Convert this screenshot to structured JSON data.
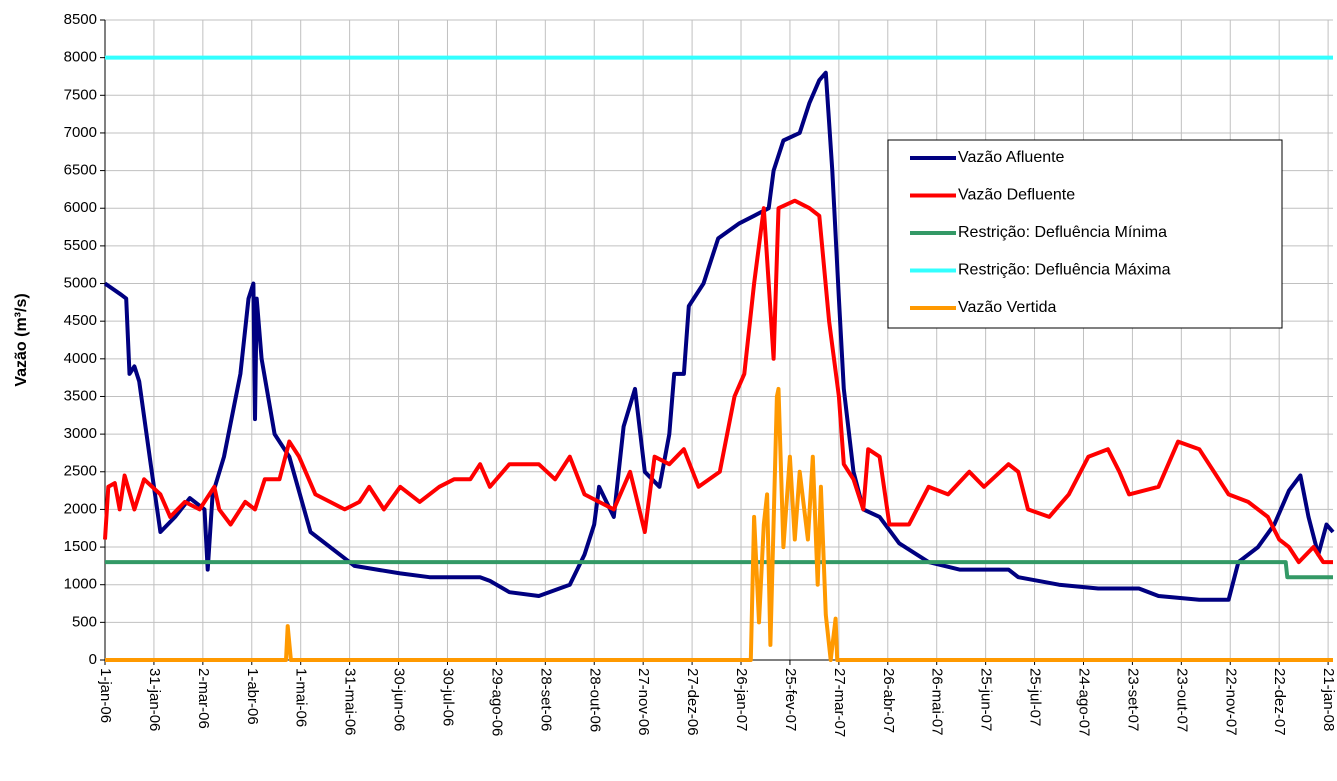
{
  "chart_data": {
    "type": "line",
    "y_label": "Vazão (m³/s)",
    "ylim": [
      0,
      8500
    ],
    "yticks": [
      0,
      500,
      1000,
      1500,
      2000,
      2500,
      3000,
      3500,
      4000,
      4500,
      5000,
      5500,
      6000,
      6500,
      7000,
      7500,
      8000,
      8500
    ],
    "xlim": [
      "2006-01-01",
      "2008-01-24"
    ],
    "xticks": [
      {
        "value": "2006-01-01",
        "label": "1-jan-06"
      },
      {
        "value": "2006-01-31",
        "label": "31-jan-06"
      },
      {
        "value": "2006-03-02",
        "label": "2-mar-06"
      },
      {
        "value": "2006-04-01",
        "label": "1-abr-06"
      },
      {
        "value": "2006-05-01",
        "label": "1-mai-06"
      },
      {
        "value": "2006-05-31",
        "label": "31-mai-06"
      },
      {
        "value": "2006-06-30",
        "label": "30-jun-06"
      },
      {
        "value": "2006-07-30",
        "label": "30-jul-06"
      },
      {
        "value": "2006-08-29",
        "label": "29-ago-06"
      },
      {
        "value": "2006-09-28",
        "label": "28-set-06"
      },
      {
        "value": "2006-10-28",
        "label": "28-out-06"
      },
      {
        "value": "2006-11-27",
        "label": "27-nov-06"
      },
      {
        "value": "2006-12-27",
        "label": "27-dez-06"
      },
      {
        "value": "2007-01-26",
        "label": "26-jan-07"
      },
      {
        "value": "2007-02-25",
        "label": "25-fev-07"
      },
      {
        "value": "2007-03-27",
        "label": "27-mar-07"
      },
      {
        "value": "2007-04-26",
        "label": "26-abr-07"
      },
      {
        "value": "2007-05-26",
        "label": "26-mai-07"
      },
      {
        "value": "2007-06-25",
        "label": "25-jun-07"
      },
      {
        "value": "2007-07-25",
        "label": "25-jul-07"
      },
      {
        "value": "2007-08-24",
        "label": "24-ago-07"
      },
      {
        "value": "2007-09-23",
        "label": "23-set-07"
      },
      {
        "value": "2007-10-23",
        "label": "23-out-07"
      },
      {
        "value": "2007-11-22",
        "label": "22-nov-07"
      },
      {
        "value": "2007-12-22",
        "label": "22-dez-07"
      },
      {
        "value": "2008-01-21",
        "label": "21-jan-08"
      }
    ],
    "grid": true,
    "legend": "upper right",
    "series": [
      {
        "name": "Vazão Afluente",
        "color": "#000080",
        "x": [
          "2006-01-01",
          "2006-01-11",
          "2006-01-14",
          "2006-01-16",
          "2006-01-19",
          "2006-01-22",
          "2006-01-29",
          "2006-02-04",
          "2006-02-13",
          "2006-02-22",
          "2006-03-03",
          "2006-03-05",
          "2006-03-08",
          "2006-03-15",
          "2006-03-25",
          "2006-03-30",
          "2006-04-02",
          "2006-04-03",
          "2006-04-04",
          "2006-04-07",
          "2006-04-15",
          "2006-04-24",
          "2006-05-07",
          "2006-05-25",
          "2006-06-03",
          "2006-07-01",
          "2006-07-19",
          "2006-08-19",
          "2006-08-25",
          "2006-09-06",
          "2006-09-24",
          "2006-10-13",
          "2006-10-22",
          "2006-10-28",
          "2006-10-31",
          "2006-11-09",
          "2006-11-15",
          "2006-11-22",
          "2006-11-28",
          "2006-12-07",
          "2006-12-13",
          "2006-12-16",
          "2006-12-22",
          "2006-12-25",
          "2007-01-03",
          "2007-01-12",
          "2007-01-25",
          "2007-02-03",
          "2007-02-12",
          "2007-02-15",
          "2007-02-21",
          "2007-03-03",
          "2007-03-09",
          "2007-03-15",
          "2007-03-19",
          "2007-03-23",
          "2007-03-27",
          "2007-03-30",
          "2007-04-05",
          "2007-04-11",
          "2007-04-21",
          "2007-05-03",
          "2007-05-21",
          "2007-06-09",
          "2007-07-09",
          "2007-07-15",
          "2007-08-09",
          "2007-09-02",
          "2007-09-27",
          "2007-10-09",
          "2007-11-03",
          "2007-11-21",
          "2007-11-27",
          "2007-12-09",
          "2007-12-19",
          "2007-12-28",
          "2008-01-04",
          "2008-01-09",
          "2008-01-15",
          "2008-01-20",
          "2008-01-24"
        ],
        "values": [
          5000,
          4850,
          4800,
          3800,
          3900,
          3700,
          2600,
          1700,
          1900,
          2150,
          2000,
          1200,
          2200,
          2700,
          3800,
          4800,
          5000,
          3200,
          4800,
          4000,
          3000,
          2700,
          1700,
          1400,
          1250,
          1150,
          1100,
          1100,
          1050,
          900,
          850,
          1000,
          1400,
          1800,
          2300,
          1900,
          3100,
          3600,
          2500,
          2300,
          3000,
          3800,
          3800,
          4700,
          5000,
          5600,
          5800,
          5900,
          6000,
          6500,
          6900,
          7000,
          7400,
          7700,
          7800,
          6500,
          4800,
          3600,
          2500,
          2000,
          1900,
          1550,
          1300,
          1200,
          1200,
          1100,
          1000,
          950,
          950,
          850,
          800,
          800,
          1300,
          1500,
          1800,
          2250,
          2450,
          1900,
          1400,
          1800,
          1700
        ]
      },
      {
        "name": "Vazão Defluente",
        "color": "#ff0000",
        "x": [
          "2006-01-01",
          "2006-01-03",
          "2006-01-07",
          "2006-01-10",
          "2006-01-13",
          "2006-01-19",
          "2006-01-25",
          "2006-02-04",
          "2006-02-10",
          "2006-02-19",
          "2006-02-28",
          "2006-03-09",
          "2006-03-12",
          "2006-03-19",
          "2006-03-28",
          "2006-04-03",
          "2006-04-09",
          "2006-04-18",
          "2006-04-24",
          "2006-04-30",
          "2006-05-10",
          "2006-05-19",
          "2006-05-28",
          "2006-06-06",
          "2006-06-12",
          "2006-06-21",
          "2006-07-01",
          "2006-07-13",
          "2006-07-25",
          "2006-08-03",
          "2006-08-13",
          "2006-08-19",
          "2006-08-25",
          "2006-09-06",
          "2006-09-24",
          "2006-10-04",
          "2006-10-13",
          "2006-10-22",
          "2006-10-31",
          "2006-11-09",
          "2006-11-19",
          "2006-11-28",
          "2006-12-04",
          "2006-12-13",
          "2006-12-22",
          "2006-12-31",
          "2007-01-13",
          "2007-01-22",
          "2007-01-28",
          "2007-02-03",
          "2007-02-09",
          "2007-02-12",
          "2007-02-15",
          "2007-02-18",
          "2007-02-28",
          "2007-03-09",
          "2007-03-15",
          "2007-03-21",
          "2007-03-27",
          "2007-03-30",
          "2007-04-05",
          "2007-04-11",
          "2007-04-14",
          "2007-04-21",
          "2007-04-27",
          "2007-05-09",
          "2007-05-21",
          "2007-06-02",
          "2007-06-15",
          "2007-06-24",
          "2007-07-09",
          "2007-07-15",
          "2007-07-21",
          "2007-08-03",
          "2007-08-15",
          "2007-08-27",
          "2007-09-08",
          "2007-09-15",
          "2007-09-21",
          "2007-10-09",
          "2007-10-21",
          "2007-11-03",
          "2007-11-12",
          "2007-11-21",
          "2007-12-03",
          "2007-12-15",
          "2007-12-22",
          "2007-12-28",
          "2008-01-03",
          "2008-01-12",
          "2008-01-18",
          "2008-01-24"
        ],
        "values": [
          1600,
          2300,
          2350,
          2000,
          2450,
          2000,
          2400,
          2200,
          1900,
          2100,
          2000,
          2300,
          2000,
          1800,
          2100,
          2000,
          2400,
          2400,
          2900,
          2700,
          2200,
          2100,
          2000,
          2100,
          2300,
          2000,
          2300,
          2100,
          2300,
          2400,
          2400,
          2600,
          2300,
          2600,
          2600,
          2400,
          2700,
          2200,
          2100,
          2000,
          2500,
          1700,
          2700,
          2600,
          2800,
          2300,
          2500,
          3500,
          3800,
          5000,
          6000,
          5000,
          4000,
          6000,
          6100,
          6000,
          5900,
          4500,
          3500,
          2600,
          2400,
          2000,
          2800,
          2700,
          1800,
          1800,
          2300,
          2200,
          2500,
          2300,
          2600,
          2500,
          2000,
          1900,
          2200,
          2700,
          2800,
          2500,
          2200,
          2300,
          2900,
          2800,
          2500,
          2200,
          2100,
          1900,
          1600,
          1500,
          1300,
          1500,
          1300,
          1300
        ]
      },
      {
        "name": "Restrição: Defluência Mínima",
        "color": "#339966",
        "x": [
          "2006-01-01",
          "2007-12-26",
          "2007-12-27",
          "2008-01-24"
        ],
        "values": [
          1300,
          1300,
          1100,
          1100
        ]
      },
      {
        "name": "Restrição: Defluência Máxima",
        "color": "#33ffff",
        "x": [
          "2006-01-01",
          "2008-01-24"
        ],
        "values": [
          8000,
          8000
        ]
      },
      {
        "name": "Vazão Vertida",
        "color": "#ff9900",
        "x": [
          "2006-01-01",
          "2006-04-22",
          "2006-04-23",
          "2006-04-25",
          "2007-02-01",
          "2007-02-03",
          "2007-02-06",
          "2007-02-09",
          "2007-02-11",
          "2007-02-13",
          "2007-02-17",
          "2007-02-18",
          "2007-02-21",
          "2007-02-25",
          "2007-02-28",
          "2007-03-03",
          "2007-03-08",
          "2007-03-11",
          "2007-03-14",
          "2007-03-16",
          "2007-03-19",
          "2007-03-22",
          "2007-03-25",
          "2007-03-26",
          "2008-01-24"
        ],
        "values": [
          0,
          0,
          450,
          0,
          0,
          1900,
          500,
          1800,
          2200,
          200,
          3500,
          3600,
          1500,
          2700,
          1600,
          2500,
          1600,
          2700,
          1000,
          2300,
          600,
          0,
          550,
          0,
          0
        ]
      }
    ]
  }
}
